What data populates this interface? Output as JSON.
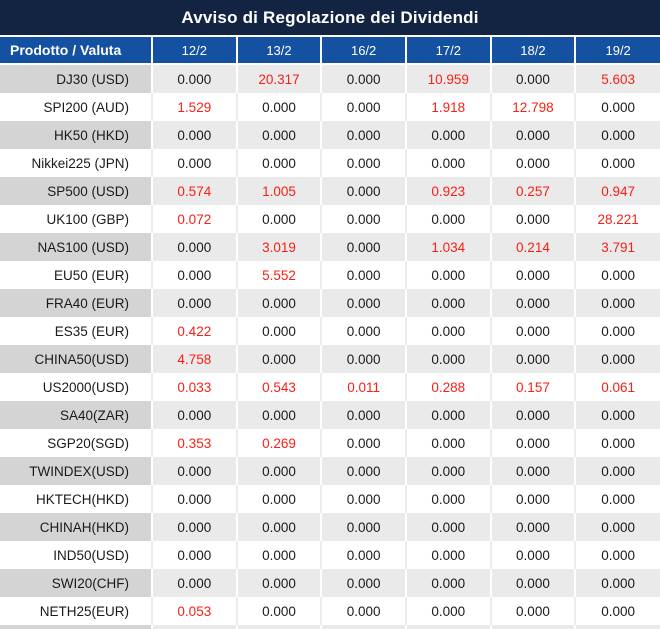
{
  "title": "Avviso di Regolazione dei Dividendi",
  "table": {
    "product_header": "Prodotto / Valuta",
    "date_headers": [
      "12/2",
      "13/2",
      "16/2",
      "17/2",
      "18/2",
      "19/2"
    ],
    "zero_value": "0.000",
    "rows": [
      {
        "product": "DJ30 (USD)",
        "values": [
          "0.000",
          "20.317",
          "0.000",
          "10.959",
          "0.000",
          "5.603"
        ]
      },
      {
        "product": "SPI200 (AUD)",
        "values": [
          "1.529",
          "0.000",
          "0.000",
          "1.918",
          "12.798",
          "0.000"
        ]
      },
      {
        "product": "HK50 (HKD)",
        "values": [
          "0.000",
          "0.000",
          "0.000",
          "0.000",
          "0.000",
          "0.000"
        ]
      },
      {
        "product": "Nikkei225 (JPN)",
        "values": [
          "0.000",
          "0.000",
          "0.000",
          "0.000",
          "0.000",
          "0.000"
        ]
      },
      {
        "product": "SP500 (USD)",
        "values": [
          "0.574",
          "1.005",
          "0.000",
          "0.923",
          "0.257",
          "0.947"
        ]
      },
      {
        "product": "UK100 (GBP)",
        "values": [
          "0.072",
          "0.000",
          "0.000",
          "0.000",
          "0.000",
          "28.221"
        ]
      },
      {
        "product": "NAS100 (USD)",
        "values": [
          "0.000",
          "3.019",
          "0.000",
          "1.034",
          "0.214",
          "3.791"
        ]
      },
      {
        "product": "EU50 (EUR)",
        "values": [
          "0.000",
          "5.552",
          "0.000",
          "0.000",
          "0.000",
          "0.000"
        ]
      },
      {
        "product": "FRA40 (EUR)",
        "values": [
          "0.000",
          "0.000",
          "0.000",
          "0.000",
          "0.000",
          "0.000"
        ]
      },
      {
        "product": "ES35 (EUR)",
        "values": [
          "0.422",
          "0.000",
          "0.000",
          "0.000",
          "0.000",
          "0.000"
        ]
      },
      {
        "product": "CHINA50(USD)",
        "values": [
          "4.758",
          "0.000",
          "0.000",
          "0.000",
          "0.000",
          "0.000"
        ]
      },
      {
        "product": "US2000(USD)",
        "values": [
          "0.033",
          "0.543",
          "0.011",
          "0.288",
          "0.157",
          "0.061"
        ]
      },
      {
        "product": "SA40(ZAR)",
        "values": [
          "0.000",
          "0.000",
          "0.000",
          "0.000",
          "0.000",
          "0.000"
        ]
      },
      {
        "product": "SGP20(SGD)",
        "values": [
          "0.353",
          "0.269",
          "0.000",
          "0.000",
          "0.000",
          "0.000"
        ]
      },
      {
        "product": "TWINDEX(USD)",
        "values": [
          "0.000",
          "0.000",
          "0.000",
          "0.000",
          "0.000",
          "0.000"
        ]
      },
      {
        "product": "HKTECH(HKD)",
        "values": [
          "0.000",
          "0.000",
          "0.000",
          "0.000",
          "0.000",
          "0.000"
        ]
      },
      {
        "product": "CHINAH(HKD)",
        "values": [
          "0.000",
          "0.000",
          "0.000",
          "0.000",
          "0.000",
          "0.000"
        ]
      },
      {
        "product": "IND50(USD)",
        "values": [
          "0.000",
          "0.000",
          "0.000",
          "0.000",
          "0.000",
          "0.000"
        ]
      },
      {
        "product": "SWI20(CHF)",
        "values": [
          "0.000",
          "0.000",
          "0.000",
          "0.000",
          "0.000",
          "0.000"
        ]
      },
      {
        "product": "NETH25(EUR)",
        "values": [
          "0.053",
          "0.000",
          "0.000",
          "0.000",
          "0.000",
          "0.000"
        ]
      }
    ]
  },
  "colors": {
    "title_bg": "#122441",
    "header_bg": "#1551a1",
    "header_text": "#ffffff",
    "row_bg": "#ffffff",
    "row_alt_bg": "#eaeaea",
    "row_alt_label_bg": "#d4d4d4",
    "grid_white": "#ffffff",
    "grid_light": "#ececec",
    "text": "#1a1a1a",
    "value_red": "#fa1e14"
  }
}
